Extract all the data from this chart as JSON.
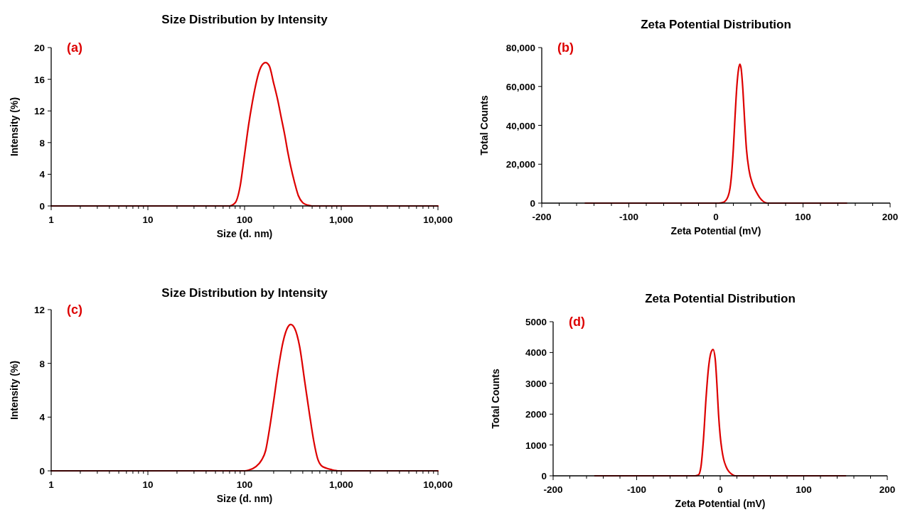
{
  "chart_data": [
    {
      "type": "line",
      "title": "Size Distribution by Intensity",
      "xlabel": "Size (d. nm)",
      "ylabel": "Intensity (%)",
      "annotations": [
        "(a)"
      ],
      "log": "x",
      "xlim": [
        1,
        10000
      ],
      "xticks": [
        1,
        {
          "value": 2,
          "label": null
        },
        {
          "value": 3,
          "label": null
        },
        {
          "value": 4,
          "label": null
        },
        {
          "value": 5,
          "label": null
        },
        {
          "value": 6,
          "label": null
        },
        {
          "value": 7,
          "label": null
        },
        {
          "value": 8,
          "label": null
        },
        {
          "value": 9,
          "label": null
        },
        10,
        {
          "value": 20,
          "label": null
        },
        {
          "value": 30,
          "label": null
        },
        {
          "value": 40,
          "label": null
        },
        {
          "value": 50,
          "label": null
        },
        {
          "value": 60,
          "label": null
        },
        {
          "value": 70,
          "label": null
        },
        {
          "value": 80,
          "label": null
        },
        {
          "value": 90,
          "label": null
        },
        100,
        {
          "value": 200,
          "label": null
        },
        {
          "value": 300,
          "label": null
        },
        {
          "value": 400,
          "label": null
        },
        {
          "value": 500,
          "label": null
        },
        {
          "value": 600,
          "label": null
        },
        {
          "value": 700,
          "label": null
        },
        {
          "value": 800,
          "label": null
        },
        {
          "value": 900,
          "label": null
        },
        {
          "value": 1000,
          "label": "1,000"
        },
        {
          "value": 2000,
          "label": null
        },
        {
          "value": 3000,
          "label": null
        },
        {
          "value": 4000,
          "label": null
        },
        {
          "value": 5000,
          "label": null
        },
        {
          "value": 6000,
          "label": null
        },
        {
          "value": 7000,
          "label": null
        },
        {
          "value": 8000,
          "label": null
        },
        {
          "value": 9000,
          "label": null
        },
        {
          "value": 10000,
          "label": "10,000"
        }
      ],
      "ylim": [
        0,
        20
      ],
      "yticks": [
        0,
        4,
        8,
        12,
        16,
        20
      ],
      "series": [
        {
          "color": "#dd0000",
          "x": [
            1,
            60,
            70,
            80,
            90,
            100,
            110,
            120,
            130,
            140,
            150,
            165,
            180,
            200,
            220,
            240,
            260,
            280,
            300,
            330,
            360,
            400,
            450,
            500,
            10000
          ],
          "values": [
            0,
            0,
            0,
            0.4,
            2.5,
            6.5,
            10.2,
            13,
            15.2,
            16.8,
            17.7,
            18.1,
            17.7,
            15.5,
            13.4,
            11.1,
            9,
            6.8,
            5,
            2.9,
            1.3,
            0.4,
            0.1,
            0,
            0
          ]
        }
      ]
    },
    {
      "type": "line",
      "title": "Zeta Potential Distribution",
      "xlabel": "Zeta Potential (mV)",
      "ylabel": "Total Counts",
      "annotations": [
        "(b)"
      ],
      "xlim": [
        -200,
        200
      ],
      "xticks": [
        -200,
        {
          "value": -180,
          "label": null
        },
        {
          "value": -160,
          "label": null
        },
        {
          "value": -140,
          "label": null
        },
        {
          "value": -120,
          "label": null
        },
        -100,
        {
          "value": -80,
          "label": null
        },
        {
          "value": -60,
          "label": null
        },
        {
          "value": -40,
          "label": null
        },
        {
          "value": -20,
          "label": null
        },
        0,
        {
          "value": 20,
          "label": null
        },
        {
          "value": 40,
          "label": null
        },
        {
          "value": 60,
          "label": null
        },
        {
          "value": 80,
          "label": null
        },
        100,
        {
          "value": 120,
          "label": null
        },
        {
          "value": 140,
          "label": null
        },
        {
          "value": 160,
          "label": null
        },
        {
          "value": 180,
          "label": null
        },
        200
      ],
      "ylim": [
        0,
        80000
      ],
      "yticks": [
        0,
        {
          "value": 20000,
          "label": "20,000"
        },
        {
          "value": 40000,
          "label": "40,000"
        },
        {
          "value": 60000,
          "label": "60,000"
        },
        {
          "value": 80000,
          "label": "80,000"
        }
      ],
      "series": [
        {
          "color": "#dd0000",
          "x": [
            -150,
            0,
            5,
            10,
            15,
            18,
            20,
            22,
            24,
            26,
            27.5,
            29,
            31,
            33,
            35,
            38,
            42,
            46,
            50,
            54,
            58,
            60,
            150
          ],
          "values": [
            0,
            0,
            100,
            800,
            5000,
            15000,
            28000,
            45000,
            60000,
            69000,
            71500,
            69000,
            58000,
            42000,
            28000,
            17000,
            10000,
            6000,
            3000,
            1000,
            100,
            0,
            0
          ]
        }
      ]
    },
    {
      "type": "line",
      "title": "Size Distribution by Intensity",
      "xlabel": "Size (d. nm)",
      "ylabel": "Intensity (%)",
      "annotations": [
        "(c)"
      ],
      "log": "x",
      "xlim": [
        1,
        10000
      ],
      "xticks": [
        1,
        {
          "value": 2,
          "label": null
        },
        {
          "value": 3,
          "label": null
        },
        {
          "value": 4,
          "label": null
        },
        {
          "value": 5,
          "label": null
        },
        {
          "value": 6,
          "label": null
        },
        {
          "value": 7,
          "label": null
        },
        {
          "value": 8,
          "label": null
        },
        {
          "value": 9,
          "label": null
        },
        10,
        {
          "value": 20,
          "label": null
        },
        {
          "value": 30,
          "label": null
        },
        {
          "value": 40,
          "label": null
        },
        {
          "value": 50,
          "label": null
        },
        {
          "value": 60,
          "label": null
        },
        {
          "value": 70,
          "label": null
        },
        {
          "value": 80,
          "label": null
        },
        {
          "value": 90,
          "label": null
        },
        100,
        {
          "value": 200,
          "label": null
        },
        {
          "value": 300,
          "label": null
        },
        {
          "value": 400,
          "label": null
        },
        {
          "value": 500,
          "label": null
        },
        {
          "value": 600,
          "label": null
        },
        {
          "value": 700,
          "label": null
        },
        {
          "value": 800,
          "label": null
        },
        {
          "value": 900,
          "label": null
        },
        {
          "value": 1000,
          "label": "1,000"
        },
        {
          "value": 2000,
          "label": null
        },
        {
          "value": 3000,
          "label": null
        },
        {
          "value": 4000,
          "label": null
        },
        {
          "value": 5000,
          "label": null
        },
        {
          "value": 6000,
          "label": null
        },
        {
          "value": 7000,
          "label": null
        },
        {
          "value": 8000,
          "label": null
        },
        {
          "value": 9000,
          "label": null
        },
        {
          "value": 10000,
          "label": "10,000"
        }
      ],
      "ylim": [
        0,
        12
      ],
      "yticks": [
        0,
        4,
        8,
        12
      ],
      "series": [
        {
          "color": "#dd0000",
          "x": [
            1,
            100,
            110,
            130,
            150,
            165,
            180,
            200,
            220,
            250,
            280,
            300,
            330,
            370,
            420,
            470,
            520,
            570,
            620,
            700,
            800,
            950,
            10000
          ],
          "values": [
            0,
            0,
            0.05,
            0.3,
            0.8,
            1.5,
            3,
            5.2,
            7.3,
            9.6,
            10.7,
            10.9,
            10.6,
            9.3,
            6.6,
            4.2,
            2.2,
            0.9,
            0.4,
            0.2,
            0.08,
            0,
            0
          ]
        }
      ]
    },
    {
      "type": "line",
      "title": "Zeta Potential Distribution",
      "xlabel": "Zeta Potential (mV)",
      "ylabel": "Total Counts",
      "annotations": [
        "(d)"
      ],
      "xlim": [
        -200,
        200
      ],
      "xticks": [
        -200,
        {
          "value": -180,
          "label": null
        },
        {
          "value": -160,
          "label": null
        },
        {
          "value": -140,
          "label": null
        },
        {
          "value": -120,
          "label": null
        },
        -100,
        {
          "value": -80,
          "label": null
        },
        {
          "value": -60,
          "label": null
        },
        {
          "value": -40,
          "label": null
        },
        {
          "value": -20,
          "label": null
        },
        0,
        {
          "value": 20,
          "label": null
        },
        {
          "value": 40,
          "label": null
        },
        {
          "value": 60,
          "label": null
        },
        {
          "value": 80,
          "label": null
        },
        100,
        {
          "value": 120,
          "label": null
        },
        {
          "value": 140,
          "label": null
        },
        {
          "value": 160,
          "label": null
        },
        {
          "value": 180,
          "label": null
        },
        200
      ],
      "ylim": [
        0,
        5000
      ],
      "yticks": [
        0,
        1000,
        2000,
        3000,
        4000,
        5000
      ],
      "series": [
        {
          "color": "#dd0000",
          "x": [
            -150,
            -30,
            -26,
            -23,
            -20,
            -17,
            -14,
            -11,
            -8.5,
            -6,
            -4,
            -2,
            0,
            2,
            4,
            7,
            10,
            14,
            18,
            150
          ],
          "values": [
            0,
            0,
            30,
            300,
            1200,
            2500,
            3500,
            4000,
            4100,
            3800,
            3000,
            2000,
            1300,
            850,
            550,
            300,
            150,
            50,
            0,
            0
          ]
        }
      ]
    }
  ]
}
